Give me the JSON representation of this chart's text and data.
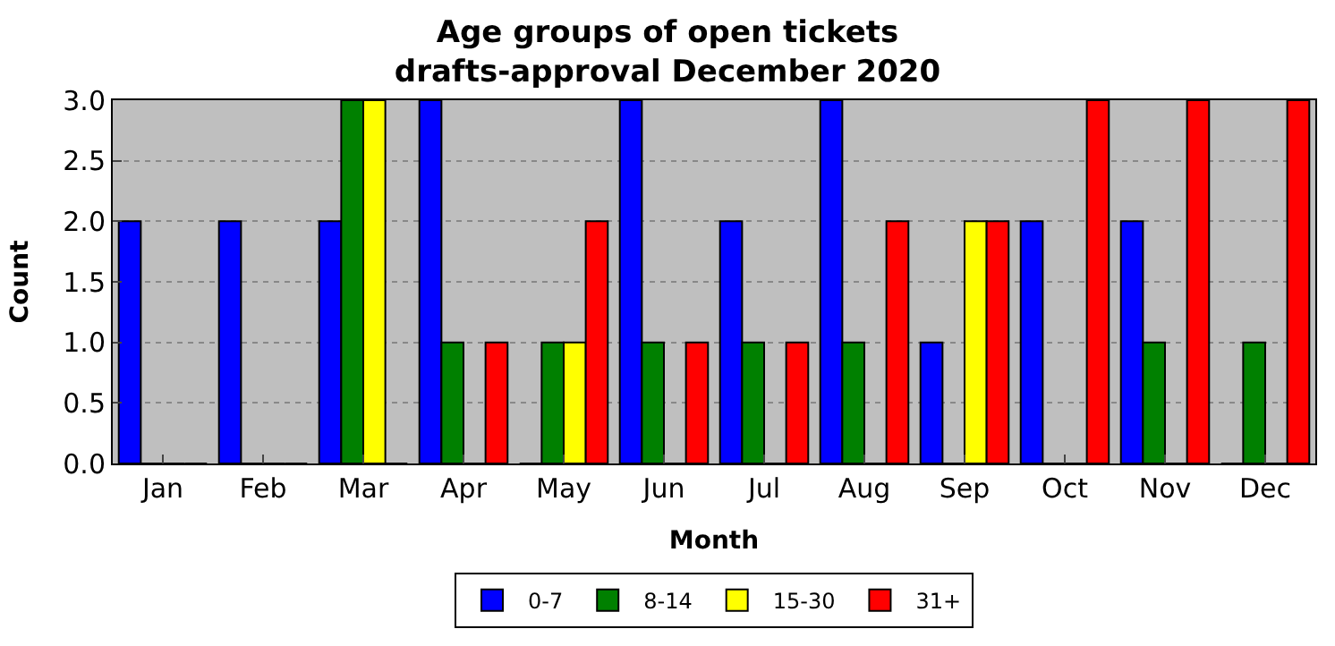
{
  "chart_data": {
    "type": "bar",
    "title": "Age groups of open tickets\ndrafts-approval December 2020",
    "xlabel": "Month",
    "ylabel": "Count",
    "categories": [
      "Jan",
      "Feb",
      "Mar",
      "Apr",
      "May",
      "Jun",
      "Jul",
      "Aug",
      "Sep",
      "Oct",
      "Nov",
      "Dec"
    ],
    "series": [
      {
        "name": "0-7",
        "color": "#0000ff",
        "values": [
          2,
          2,
          2,
          3,
          0,
          3,
          2,
          3,
          1,
          2,
          2,
          0
        ]
      },
      {
        "name": "8-14",
        "color": "#008000",
        "values": [
          0,
          0,
          3,
          1,
          1,
          1,
          1,
          1,
          0,
          0,
          1,
          1
        ]
      },
      {
        "name": "15-30",
        "color": "#ffff00",
        "values": [
          0,
          0,
          3,
          0,
          1,
          0,
          0,
          0,
          2,
          0,
          0,
          0
        ]
      },
      {
        "name": "31+",
        "color": "#ff0000",
        "values": [
          0,
          0,
          0,
          1,
          2,
          1,
          1,
          2,
          2,
          3,
          3,
          3
        ]
      }
    ],
    "ylim": [
      0,
      3
    ],
    "yticks": [
      {
        "value": 0,
        "label": "0.0"
      },
      0.5,
      {
        "value": 1,
        "label": "1.0"
      },
      1.5,
      {
        "value": 2,
        "label": "2.0"
      },
      2.5,
      {
        "value": 3,
        "label": "3.0"
      }
    ],
    "grid": "y",
    "legend": "bottom"
  }
}
